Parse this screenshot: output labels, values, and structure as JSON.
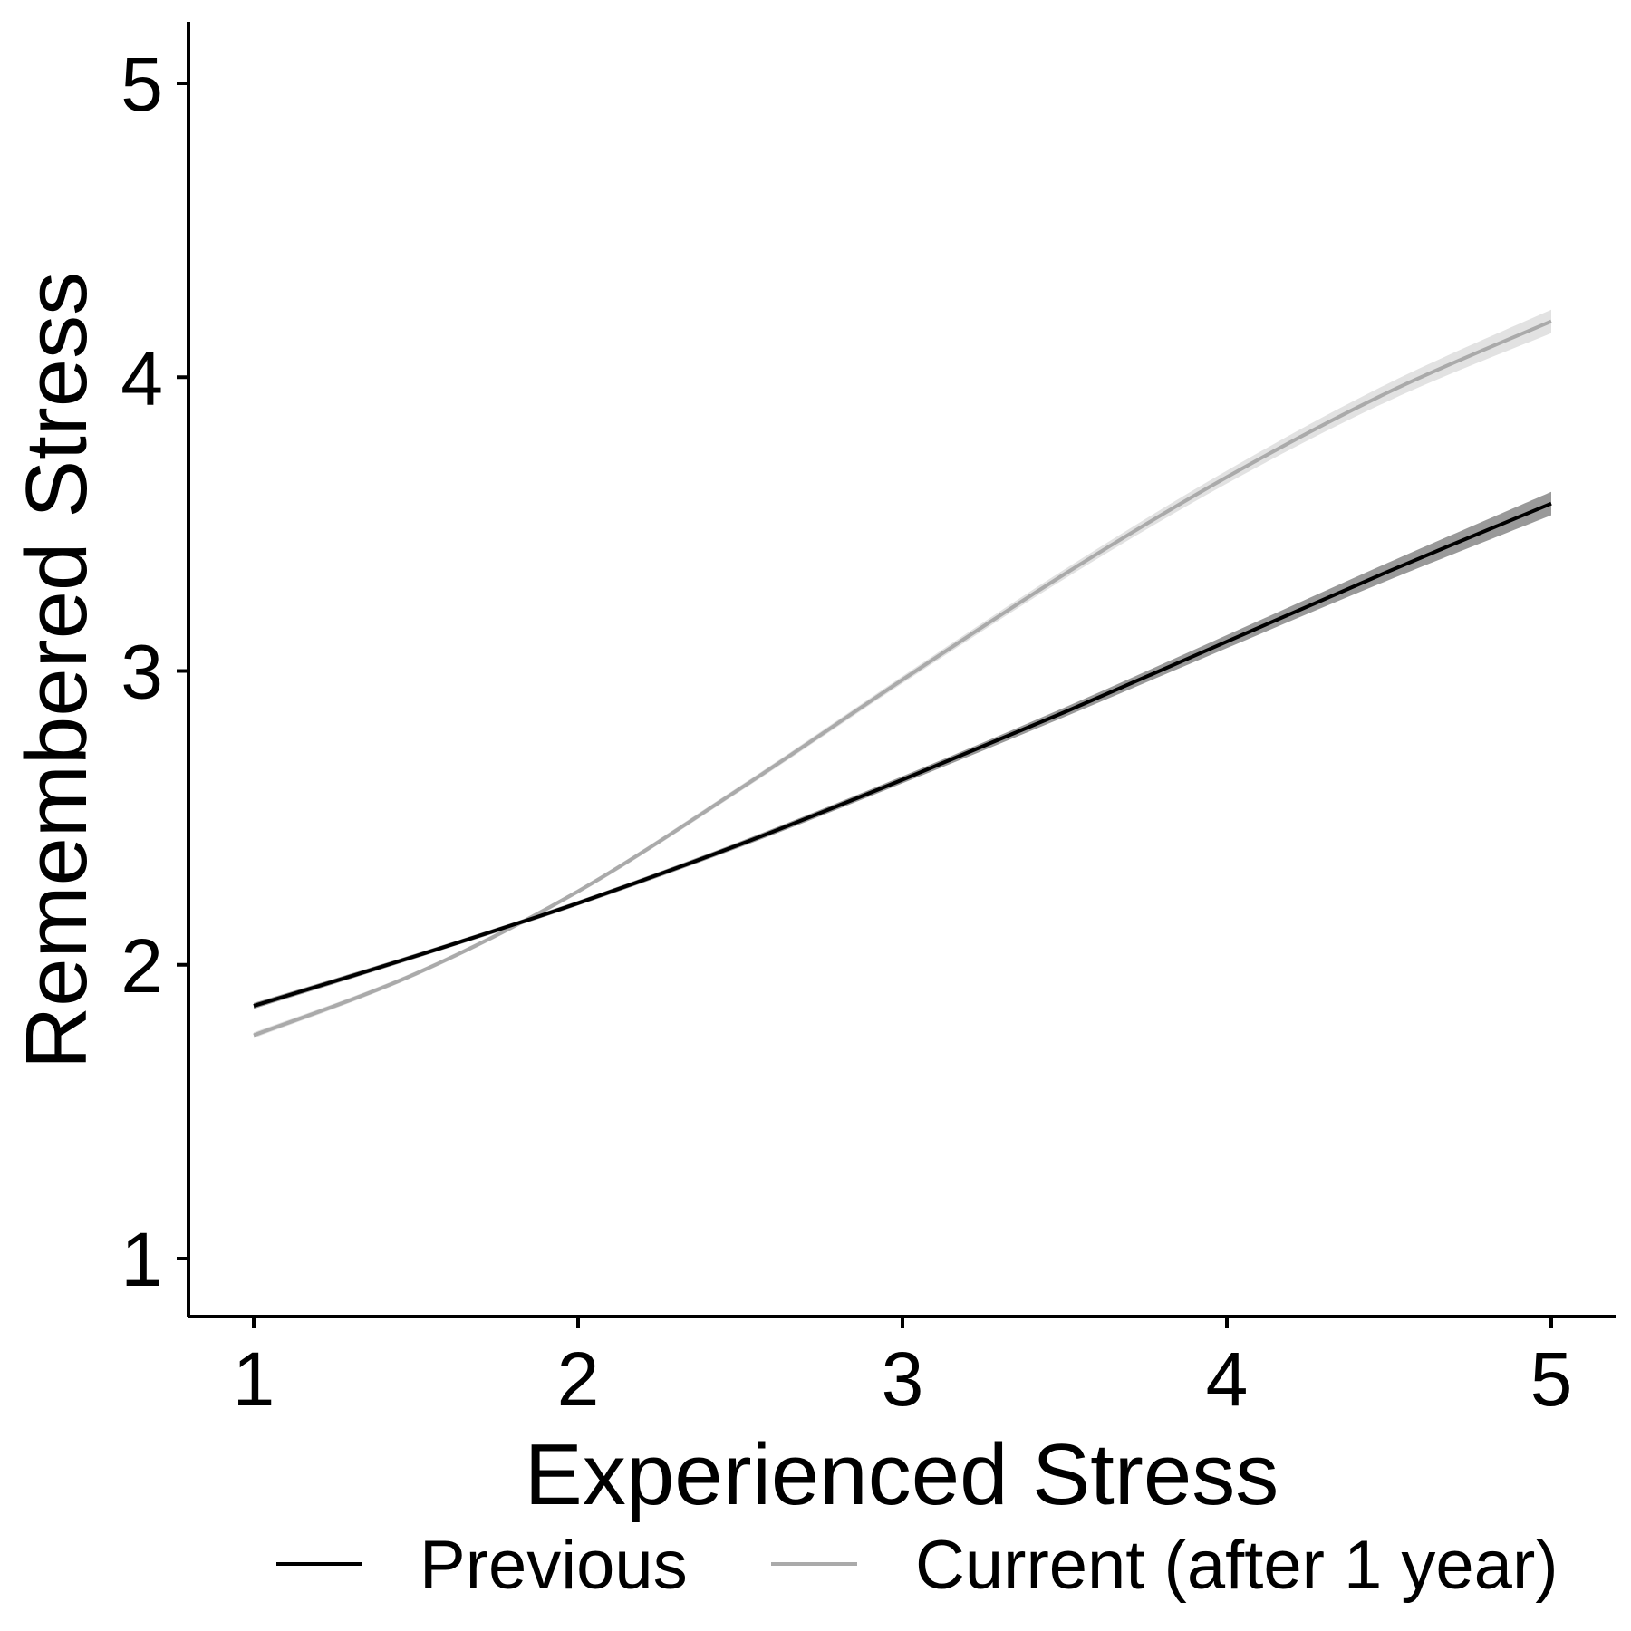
{
  "chart_data": {
    "type": "line",
    "xlabel": "Experienced Stress",
    "ylabel": "Remembered Stress",
    "xlim": [
      0.8,
      5.2
    ],
    "ylim": [
      0.8,
      5.2
    ],
    "x_ticks": [
      1,
      2,
      3,
      4,
      5
    ],
    "y_ticks": [
      1,
      2,
      3,
      4,
      5
    ],
    "grid": false,
    "legend_position": "bottom",
    "x": [
      1,
      1.5,
      2,
      2.5,
      3,
      3.5,
      4,
      4.5,
      5
    ],
    "series": [
      {
        "name": "Previous",
        "color": "#000000",
        "band_color": "#999999",
        "values": [
          1.86,
          2.03,
          2.21,
          2.41,
          2.63,
          2.86,
          3.1,
          3.34,
          3.57
        ],
        "ci_halfwidth": [
          0.01,
          0.008,
          0.008,
          0.01,
          0.012,
          0.016,
          0.022,
          0.03,
          0.04
        ]
      },
      {
        "name": "Current (after 1 year)",
        "color": "#aaaaaa",
        "band_color": "#e2e2e2",
        "values": [
          1.76,
          1.97,
          2.25,
          2.6,
          2.97,
          3.33,
          3.66,
          3.95,
          4.19
        ],
        "ci_halfwidth": [
          0.01,
          0.008,
          0.008,
          0.01,
          0.012,
          0.016,
          0.022,
          0.03,
          0.04
        ]
      }
    ]
  }
}
